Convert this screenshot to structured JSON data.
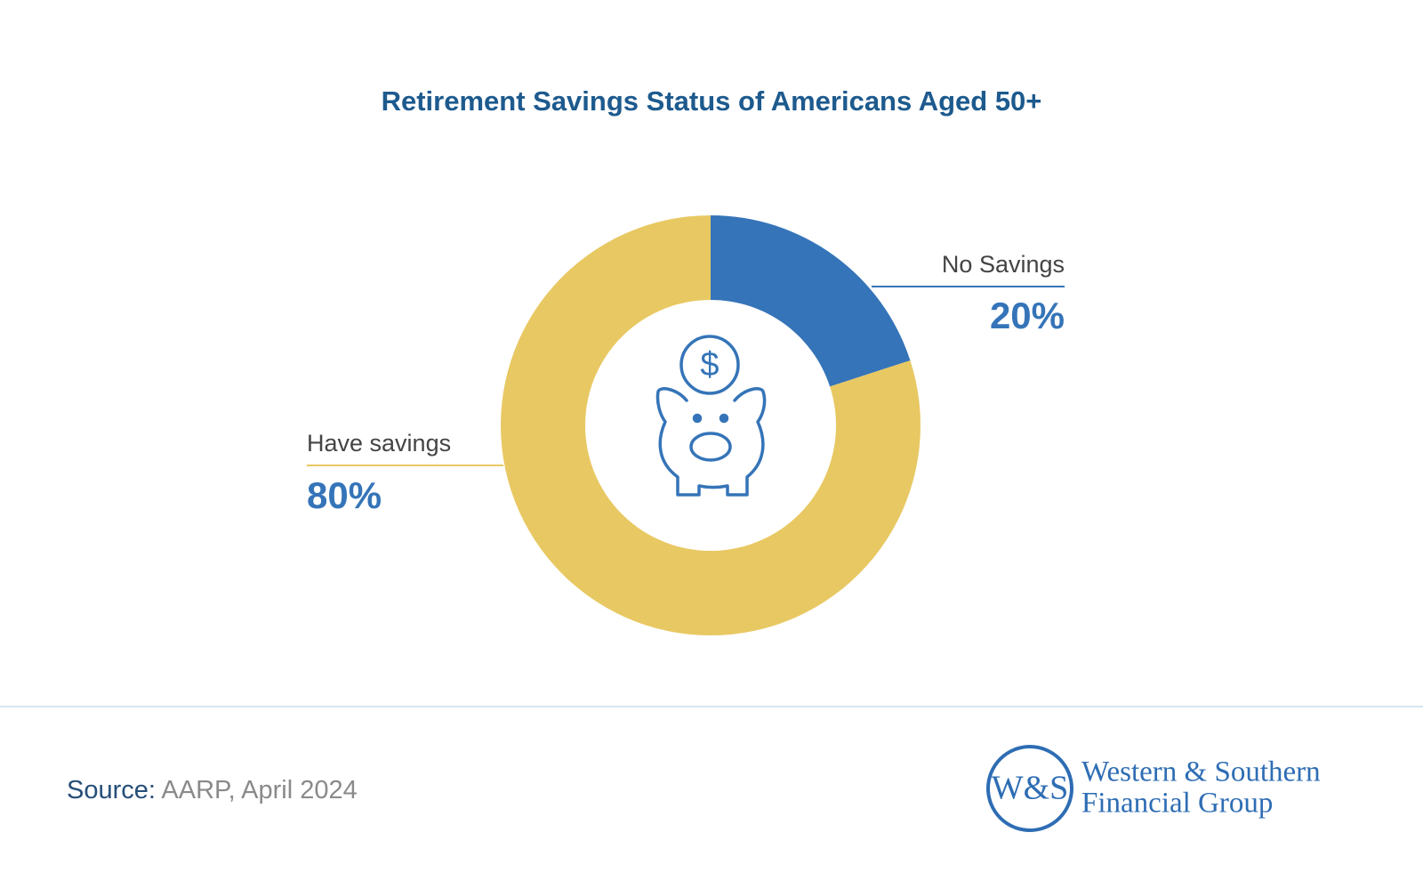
{
  "chart_data": {
    "type": "pie",
    "title": "Retirement Savings Status of Americans Aged 50+",
    "categories": [
      "No Savings",
      "Have savings"
    ],
    "values": [
      20,
      80
    ],
    "value_labels": [
      "20%",
      "80%"
    ],
    "colors": [
      "#3574b8",
      "#e8c862"
    ],
    "donut": true
  },
  "footer": {
    "source_label": "Source:",
    "source": "AARP, April 2024",
    "logo": {
      "mark": "W&S",
      "line1": "Western & Southern",
      "line2": "Financial Group"
    }
  }
}
